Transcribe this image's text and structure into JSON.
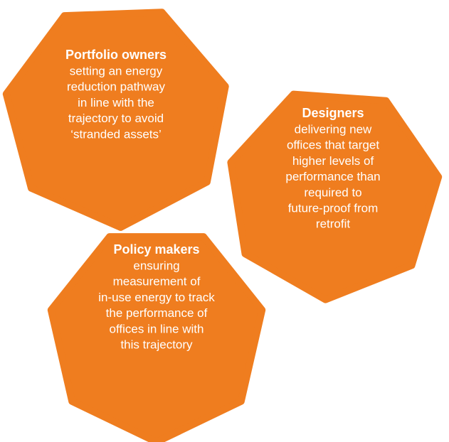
{
  "nodes": [
    {
      "title": "Portfolio owners",
      "lines": [
        "setting an energy",
        "reduction pathway",
        "in line with the",
        "trajectory to avoid",
        "‘stranded assets’"
      ]
    },
    {
      "title": "Designers",
      "lines": [
        "delivering new",
        "offices that target",
        "higher levels of",
        "performance than",
        "required to",
        "future-proof from",
        "retrofit"
      ]
    },
    {
      "title": "Policy makers",
      "lines": [
        "ensuring",
        "measurement of",
        "in-use energy to track",
        "the performance of",
        "offices in line with",
        "this trajectory"
      ]
    }
  ]
}
